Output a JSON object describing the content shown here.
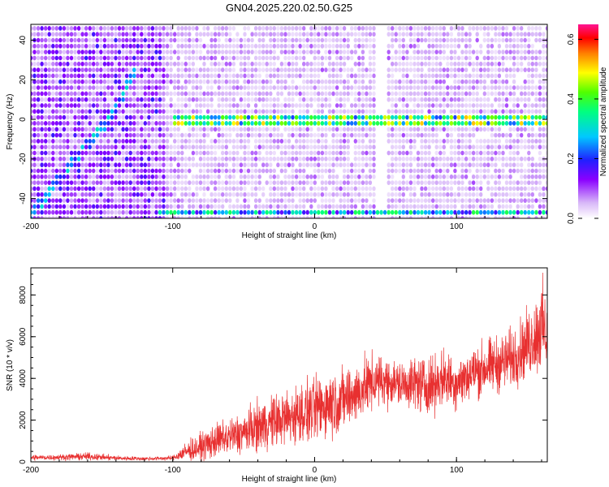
{
  "title": "GN04.2025.220.02.50.G25",
  "chart_data": [
    {
      "type": "heatmap",
      "xlabel": "Height of straight line (km)",
      "ylabel": "Frequency (Hz)",
      "xlim": [
        -200,
        164
      ],
      "ylim": [
        -50,
        48
      ],
      "xticks": [
        -200,
        -100,
        0,
        100
      ],
      "yticks": [
        -40,
        -20,
        0,
        20,
        40
      ],
      "colorbar": {
        "label": "Normalized spectral amplitude",
        "range": [
          0,
          0.65
        ],
        "ticks": [
          0.0,
          0.2,
          0.4,
          0.6
        ],
        "tick_labels": [
          "0.0",
          "0.2",
          "0.4",
          "0.6"
        ],
        "colormap": [
          "#ffffff",
          "#c8a0f0",
          "#7b00ff",
          "#2020ff",
          "#00c8ff",
          "#00ff80",
          "#40ff00",
          "#ffff00",
          "#ff8000",
          "#ff0000",
          "#ff1493"
        ]
      },
      "features": [
        {
          "name": "carrier-line",
          "frequency": 0,
          "x_range": [
            -100,
            164
          ],
          "amplitude": 0.35
        },
        {
          "name": "edge-line",
          "frequency": -48,
          "x_range": [
            -110,
            164
          ],
          "amplitude": 0.3
        },
        {
          "name": "diagonal-streak",
          "points": [
            [
              -200,
              -48
            ],
            [
              -140,
              5
            ],
            [
              -125,
              28
            ]
          ],
          "amplitude": 0.25
        }
      ]
    },
    {
      "type": "line",
      "xlabel": "Height of straight line (km)",
      "ylabel": "SNR (10 * v/v)",
      "xlim": [
        -200,
        164
      ],
      "ylim": [
        0,
        9300
      ],
      "xticks": [
        -200,
        -100,
        0,
        100
      ],
      "yticks": [
        0,
        2000,
        4000,
        6000,
        8000
      ],
      "color": "#e83030",
      "series": [
        {
          "x": [
            -200,
            -180,
            -160,
            -140,
            -120,
            -100,
            -90,
            -80,
            -70,
            -60,
            -50,
            -40,
            -30,
            -20,
            -10,
            0,
            10,
            20,
            30,
            40,
            50,
            60,
            70,
            80,
            90,
            100,
            110,
            120,
            130,
            140,
            150,
            155,
            160,
            164
          ],
          "mean": [
            200,
            220,
            260,
            180,
            150,
            180,
            500,
            700,
            1000,
            1200,
            1400,
            1700,
            1900,
            2100,
            2300,
            2500,
            2800,
            3000,
            3300,
            3800,
            3900,
            3700,
            3800,
            3600,
            4000,
            3800,
            4200,
            4500,
            4700,
            5000,
            5600,
            6000,
            6500,
            6000
          ],
          "spread": [
            150,
            150,
            200,
            130,
            100,
            120,
            500,
            700,
            900,
            1000,
            1100,
            1300,
            1400,
            1500,
            1600,
            1700,
            1800,
            1700,
            1600,
            1500,
            1300,
            1200,
            1400,
            1500,
            1500,
            1400,
            1400,
            1500,
            1500,
            1600,
            1800,
            2000,
            2600,
            1800
          ]
        }
      ]
    }
  ]
}
